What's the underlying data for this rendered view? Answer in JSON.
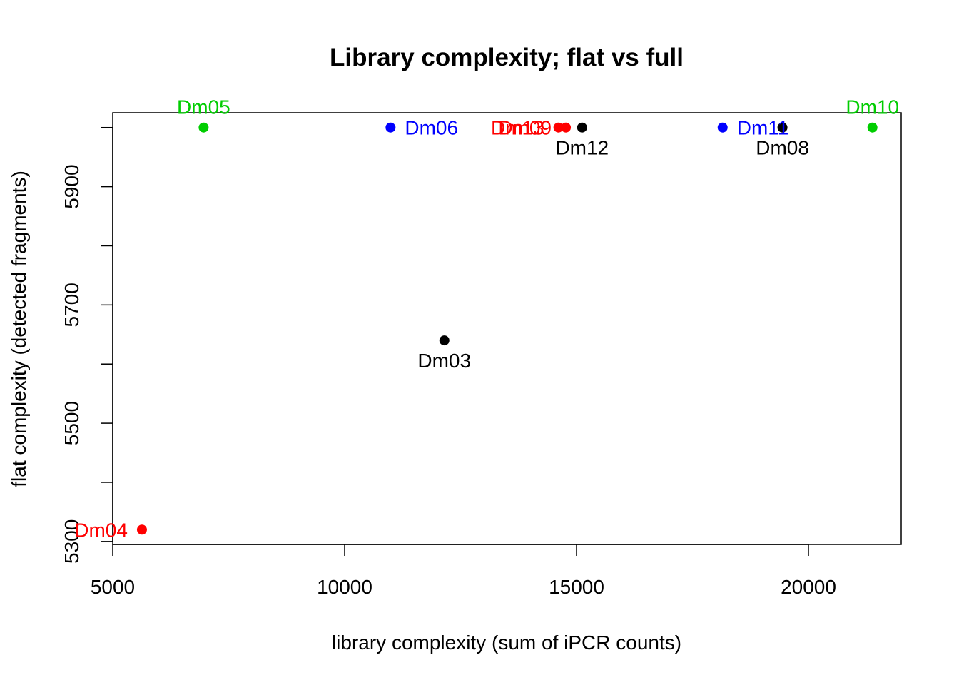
{
  "chart_data": {
    "type": "scatter",
    "title": "Library complexity; flat vs full",
    "xlabel": "library complexity (sum of iPCR counts)",
    "ylabel": "flat complexity (detected fragments)",
    "xlim": [
      5000,
      22000
    ],
    "ylim": [
      5295,
      6025
    ],
    "xticks": [
      5000,
      10000,
      15000,
      20000
    ],
    "yticks": [
      5300,
      5400,
      5500,
      5600,
      5700,
      5800,
      5900,
      6000
    ],
    "ytick_labels": [
      "5300",
      "",
      "5500",
      "",
      "5700",
      "",
      "5900",
      ""
    ],
    "grid": false,
    "legend": "none",
    "colors": {
      "black": "#000000",
      "red": "#ff0000",
      "green": "#00cd00",
      "blue": "#0000ff"
    },
    "points": [
      {
        "label": "Dm03",
        "x": 12150,
        "y": 5640,
        "color": "#000000",
        "label_pos": "below"
      },
      {
        "label": "Dm04",
        "x": 5630,
        "y": 5320,
        "color": "#ff0000",
        "label_pos": "left"
      },
      {
        "label": "Dm05",
        "x": 6960,
        "y": 6000,
        "color": "#00cd00",
        "label_pos": "above"
      },
      {
        "label": "Dm06",
        "x": 10990,
        "y": 6000,
        "color": "#0000ff",
        "label_pos": "right"
      },
      {
        "label": "Dm08",
        "x": 19440,
        "y": 6000,
        "color": "#000000",
        "label_pos": "below"
      },
      {
        "label": "Dm09",
        "x": 14770,
        "y": 6000,
        "color": "#ff0000",
        "label_pos": "left"
      },
      {
        "label": "Dm10",
        "x": 21380,
        "y": 6000,
        "color": "#00cd00",
        "label_pos": "above"
      },
      {
        "label": "Dm11",
        "x": 18150,
        "y": 6000,
        "color": "#0000ff",
        "label_pos": "right"
      },
      {
        "label": "Dm12",
        "x": 15120,
        "y": 6000,
        "color": "#000000",
        "label_pos": "below"
      },
      {
        "label": "Dm13",
        "x": 14610,
        "y": 6000,
        "color": "#ff0000",
        "label_pos": "left"
      }
    ]
  }
}
